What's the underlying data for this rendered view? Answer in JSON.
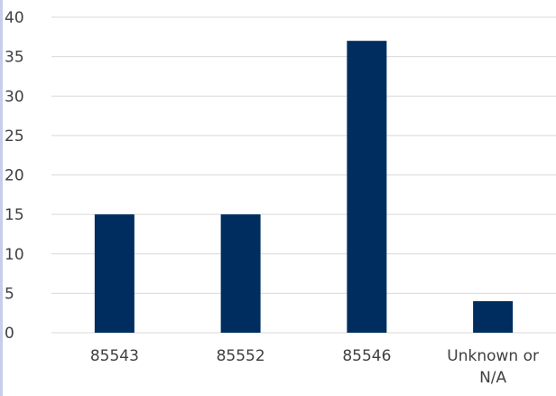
{
  "chart_data": {
    "type": "bar",
    "title": "",
    "xlabel": "",
    "ylabel": "",
    "categories": [
      "85543",
      "85552",
      "85546",
      "Unknown or N/A"
    ],
    "category_lines": [
      [
        "85543"
      ],
      [
        "85552"
      ],
      [
        "85546"
      ],
      [
        "Unknown or",
        "N/A"
      ]
    ],
    "values": [
      15,
      15,
      37,
      4
    ],
    "ylim": [
      0,
      40
    ],
    "yticks": [
      0,
      5,
      10,
      15,
      20,
      25,
      30,
      35,
      40
    ],
    "grid": true,
    "legend": "none",
    "colors": {
      "bar": "#002d5f",
      "grid": "#d9d9d9",
      "text": "#404040",
      "strip": "#c5cfea"
    }
  }
}
